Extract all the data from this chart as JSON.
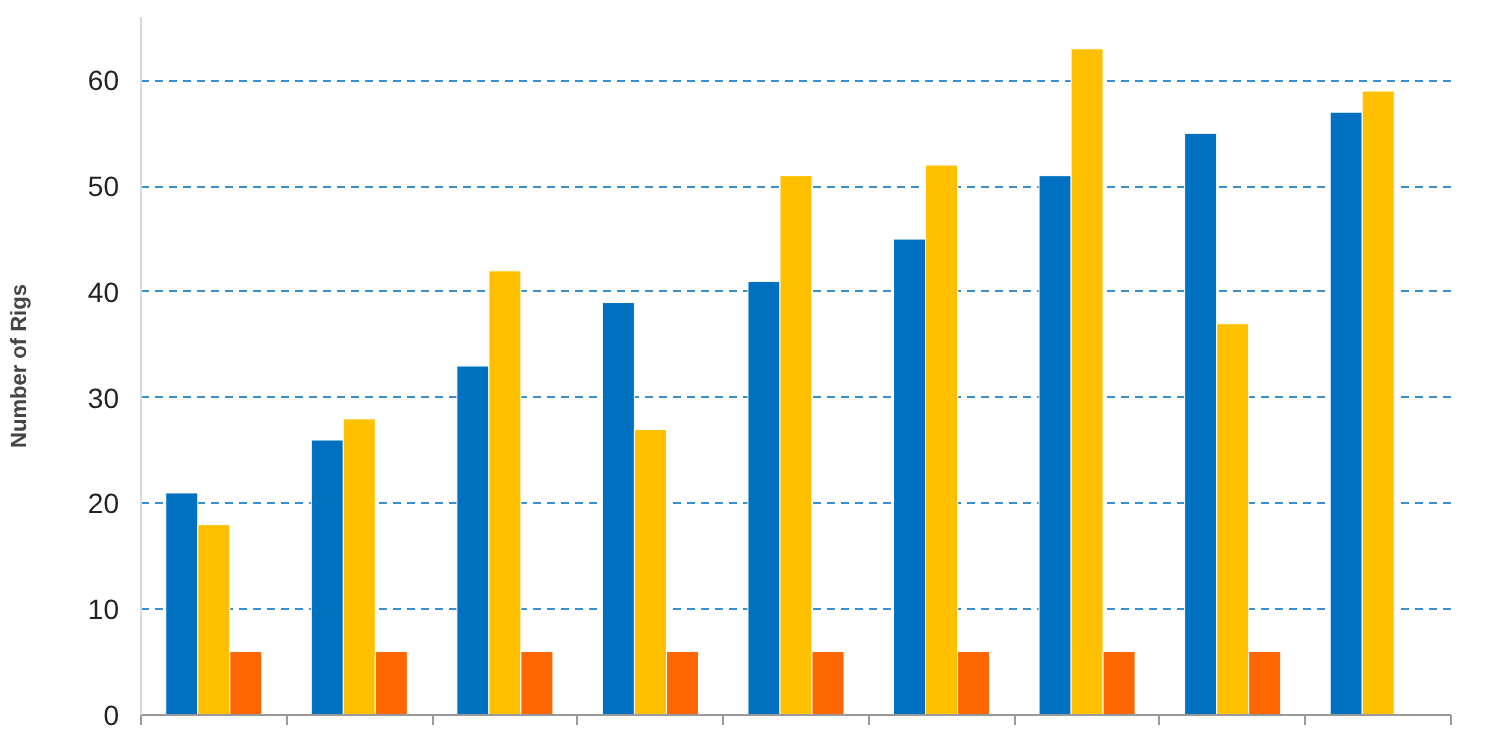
{
  "chart_data": {
    "type": "bar",
    "ylabel": "Number of Rigs",
    "categories": [
      null,
      null,
      null,
      null,
      null,
      null,
      null,
      null,
      null
    ],
    "series": [
      {
        "color": "#0070c0",
        "values": [
          21,
          26,
          33,
          39,
          41,
          45,
          51,
          55,
          57
        ]
      },
      {
        "color": "#ffc000",
        "values": [
          18,
          28,
          42,
          27,
          51,
          52,
          63,
          37,
          59
        ]
      },
      {
        "color": "#ff6600",
        "values": [
          6,
          6,
          6,
          6,
          6,
          6,
          6,
          6,
          null
        ]
      }
    ],
    "ylim": [
      0,
      66
    ],
    "yticks": [
      0,
      10,
      20,
      30,
      40,
      50,
      60
    ],
    "grid": "y"
  }
}
